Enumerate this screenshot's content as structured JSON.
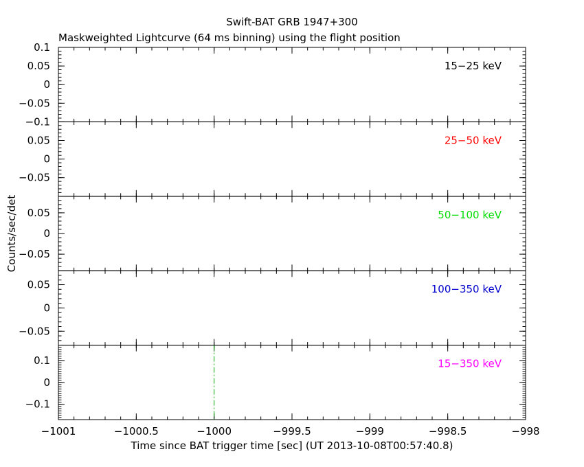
{
  "chart_data": {
    "type": "line",
    "title": "Swift-BAT GRB 1947+300",
    "subtitle": "Maskweighted Lightcurve (64 ms binning) using the flight position",
    "xlabel": "Time since BAT trigger time [sec] (UT 2013-10-08T00:57:40.8)",
    "ylabel": "Counts/sec/det",
    "xlim": [
      -1001,
      -998
    ],
    "x_ticks": [
      -1001,
      -1000.5,
      -1000,
      -999.5,
      -999,
      -998.5,
      -998
    ],
    "x_tick_labels": [
      "−1001",
      "−1000.5",
      "−1000",
      "−999.5",
      "−999",
      "−998.5",
      "−998"
    ],
    "panels": [
      {
        "band": "15−25 keV",
        "color": "#000000",
        "ylim": [
          -0.1,
          0.1
        ],
        "y_ticks": [
          -0.1,
          -0.05,
          0,
          0.05,
          0.1
        ],
        "y_tick_labels": [
          "−0.1",
          "−0.05",
          "0",
          "0.05",
          "0.1"
        ],
        "x": [],
        "values": []
      },
      {
        "band": "25−50 keV",
        "color": "#ff0000",
        "ylim": [
          -0.1,
          0.1
        ],
        "y_ticks": [
          -0.05,
          0,
          0.05
        ],
        "y_tick_labels": [
          "−0.05",
          "0",
          "0.05"
        ],
        "x": [],
        "values": []
      },
      {
        "band": "50−100 keV",
        "color": "#00dd00",
        "ylim": [
          -0.09,
          0.09
        ],
        "y_ticks": [
          -0.05,
          0,
          0.05
        ],
        "y_tick_labels": [
          "−0.05",
          "0",
          "0.05"
        ],
        "x": [],
        "values": []
      },
      {
        "band": "100−350 keV",
        "color": "#0000cc",
        "ylim": [
          -0.08,
          0.08
        ],
        "y_ticks": [
          -0.05,
          0,
          0.05
        ],
        "y_tick_labels": [
          "−0.05",
          "0",
          "0.05"
        ],
        "x": [],
        "values": []
      },
      {
        "band": "15−350 keV",
        "color": "#ff00ff",
        "ylim": [
          -0.17,
          0.17
        ],
        "y_ticks": [
          -0.1,
          0,
          0.1
        ],
        "y_tick_labels": [
          "−0.1",
          "0",
          "0.1"
        ],
        "x": [],
        "values": []
      }
    ],
    "annotations": [
      {
        "type": "vertical-line",
        "panel": 4,
        "x": -1000,
        "color": "#00aa00",
        "style": "dash-dot"
      }
    ]
  }
}
